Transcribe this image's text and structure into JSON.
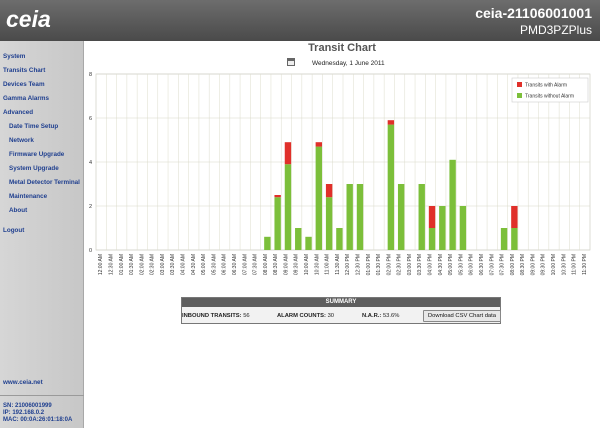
{
  "header": {
    "logo_text": "ceia",
    "device_id": "ceia-21106001001",
    "model": "PMD3PZPlus"
  },
  "sidebar": {
    "items": [
      {
        "label": "System",
        "sub": false
      },
      {
        "label": "Transits Chart",
        "sub": false
      },
      {
        "label": "Devices Team",
        "sub": false
      },
      {
        "label": "Gamma Alarms",
        "sub": false
      },
      {
        "label": "Advanced",
        "sub": false
      },
      {
        "label": "Date Time Setup",
        "sub": true
      },
      {
        "label": "Network",
        "sub": true
      },
      {
        "label": "Firmware Upgrade",
        "sub": true
      },
      {
        "label": "System Upgrade",
        "sub": true
      },
      {
        "label": "Metal Detector Terminal",
        "sub": true
      },
      {
        "label": "Maintenance",
        "sub": true
      },
      {
        "label": "About",
        "sub": true
      },
      {
        "label": "Logout",
        "sub": false
      }
    ],
    "site": "www.ceia.net",
    "sn": "SN: 21006001999",
    "ip": "IP: 192.168.0.2",
    "mac": "MAC: 00:0A:26:01:18:0A"
  },
  "page": {
    "title": "Transit Chart",
    "date": "Wednesday, 1 June 2011",
    "calendar_icon": "calendar-icon"
  },
  "chart_data": {
    "type": "bar",
    "stacked": true,
    "ylim": [
      0,
      8
    ],
    "yticks": [
      0,
      2,
      4,
      6,
      8
    ],
    "grid": true,
    "legend_position": "top-right",
    "categories": [
      "12:00 AM",
      "12:30 AM",
      "01:00 AM",
      "01:30 AM",
      "02:00 AM",
      "02:30 AM",
      "03:00 AM",
      "03:30 AM",
      "04:00 AM",
      "04:30 AM",
      "05:00 AM",
      "05:30 AM",
      "06:00 AM",
      "06:30 AM",
      "07:00 AM",
      "07:30 AM",
      "08:00 AM",
      "08:30 AM",
      "09:00 AM",
      "09:30 AM",
      "10:00 AM",
      "10:30 AM",
      "11:00 AM",
      "11:30 AM",
      "12:00 PM",
      "12:30 PM",
      "01:00 PM",
      "01:30 PM",
      "02:00 PM",
      "02:30 PM",
      "03:00 PM",
      "03:30 PM",
      "04:00 PM",
      "04:30 PM",
      "05:00 PM",
      "05:30 PM",
      "06:00 PM",
      "06:30 PM",
      "07:00 PM",
      "07:30 PM",
      "08:00 PM",
      "08:30 PM",
      "09:00 PM",
      "09:30 PM",
      "10:00 PM",
      "10:30 PM",
      "11:00 PM",
      "11:30 PM"
    ],
    "series": [
      {
        "name": "Transits without Alarm",
        "color": "#7cbf3a",
        "values": [
          0,
          0,
          0,
          0,
          0,
          0,
          0,
          0,
          0,
          0,
          0,
          0,
          0,
          0,
          0,
          0,
          0.6,
          2.4,
          3.9,
          1.0,
          0.6,
          4.7,
          2.4,
          1.0,
          3.0,
          3.0,
          0,
          0,
          5.7,
          3.0,
          0,
          3.0,
          1.0,
          2.0,
          4.1,
          2.0,
          0,
          0,
          0,
          1.0,
          1.0,
          0,
          0,
          0,
          0,
          0,
          0,
          0
        ]
      },
      {
        "name": "Transits with Alarm",
        "color": "#e0302a",
        "values": [
          0,
          0,
          0,
          0,
          0,
          0,
          0,
          0,
          0,
          0,
          0,
          0,
          0,
          0,
          0,
          0,
          0,
          0.1,
          1.0,
          0,
          0,
          0.2,
          0.6,
          0,
          0,
          0,
          0,
          0,
          0.2,
          0,
          0,
          0,
          1.0,
          0,
          0,
          0,
          0,
          0,
          0,
          0,
          1.0,
          0,
          0,
          0,
          0,
          0,
          0,
          0
        ]
      }
    ]
  },
  "summary": {
    "title": "SUMMARY",
    "inbound_label": "INBOUND TRANSITS:",
    "inbound_value": "56",
    "alarm_label": "ALARM COUNTS:",
    "alarm_value": "30",
    "nar_label": "N.A.R.:",
    "nar_value": "53.6%",
    "csv_button": "Download CSV Chart data"
  }
}
